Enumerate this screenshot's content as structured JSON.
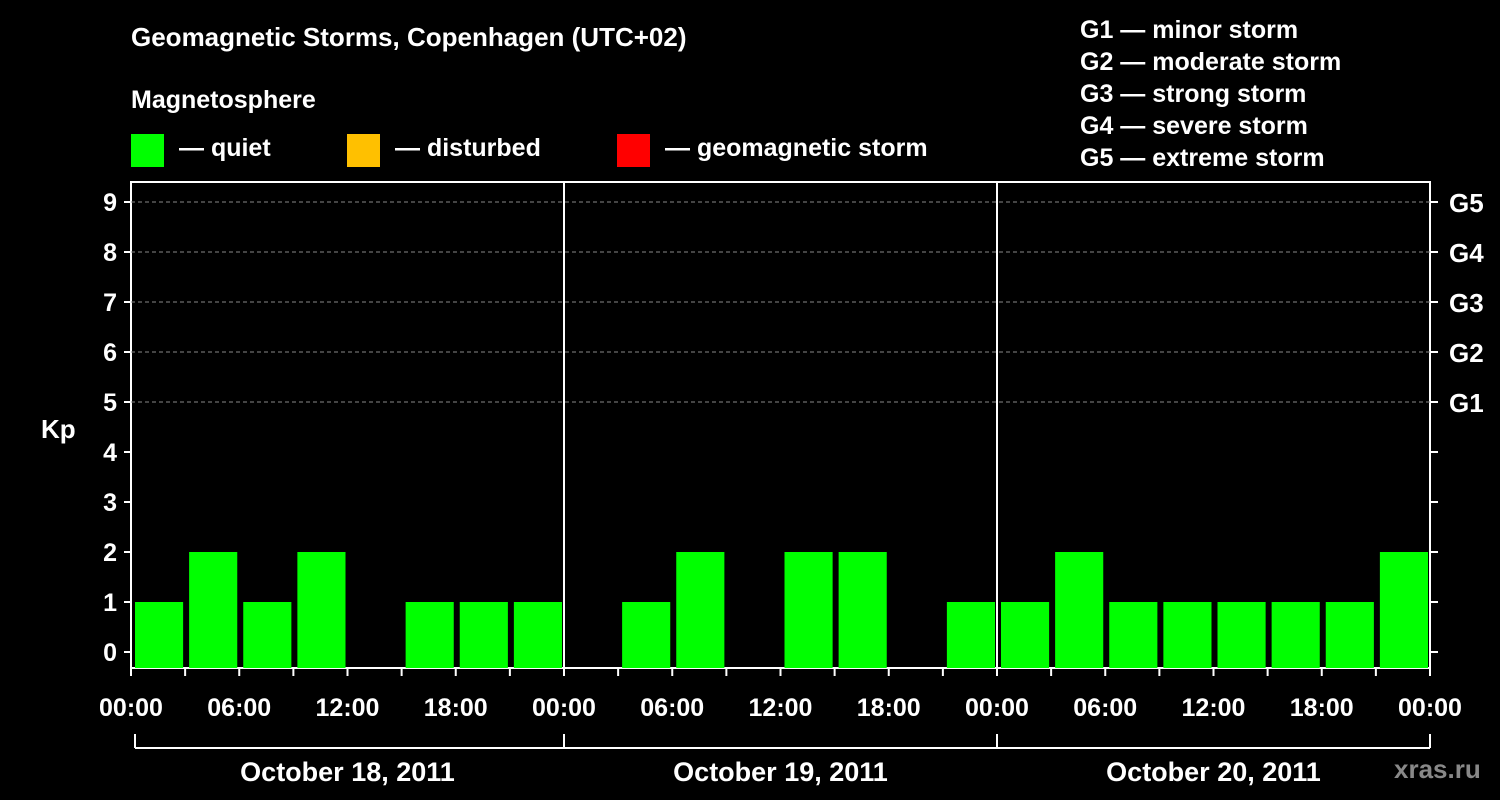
{
  "title": "Geomagnetic Storms, Copenhagen (UTC+02)",
  "magnetosphere": {
    "title": "Magnetosphere",
    "items": [
      {
        "color": "#00ff00",
        "label": "— quiet"
      },
      {
        "color": "#ffc000",
        "label": "— disturbed"
      },
      {
        "color": "#ff0000",
        "label": "— geomagnetic storm"
      }
    ]
  },
  "storm_scale": [
    "G1 — minor storm",
    "G2 — moderate storm",
    "G3 — strong storm",
    "G4 — severe storm",
    "G5 — extreme storm"
  ],
  "watermark": "xras.ru",
  "chart_data": {
    "type": "bar",
    "ylabel": "Kp",
    "ylim": [
      0,
      9
    ],
    "y_ticks": [
      "0",
      "1",
      "2",
      "3",
      "4",
      "5",
      "6",
      "7",
      "8",
      "9"
    ],
    "right_ticks": [
      {
        "kp": 5,
        "label": "G1"
      },
      {
        "kp": 6,
        "label": "G2"
      },
      {
        "kp": 7,
        "label": "G3"
      },
      {
        "kp": 8,
        "label": "G4"
      },
      {
        "kp": 9,
        "label": "G5"
      }
    ],
    "grid": "dashed horizontal at Kp 5–9",
    "x_tick_labels": [
      "00:00",
      "06:00",
      "12:00",
      "18:00",
      "00:00",
      "06:00",
      "12:00",
      "18:00",
      "00:00",
      "06:00",
      "12:00",
      "18:00",
      "00:00"
    ],
    "days": [
      "October 18, 2011",
      "October 19, 2011",
      "October 20, 2011"
    ],
    "interval_hours": 3,
    "values": [
      1,
      2,
      1,
      2,
      0,
      1,
      1,
      1,
      0,
      1,
      2,
      0,
      2,
      2,
      0,
      1,
      1,
      2,
      1,
      1,
      1,
      1,
      1,
      2
    ],
    "bar_color": "#00ff00"
  }
}
